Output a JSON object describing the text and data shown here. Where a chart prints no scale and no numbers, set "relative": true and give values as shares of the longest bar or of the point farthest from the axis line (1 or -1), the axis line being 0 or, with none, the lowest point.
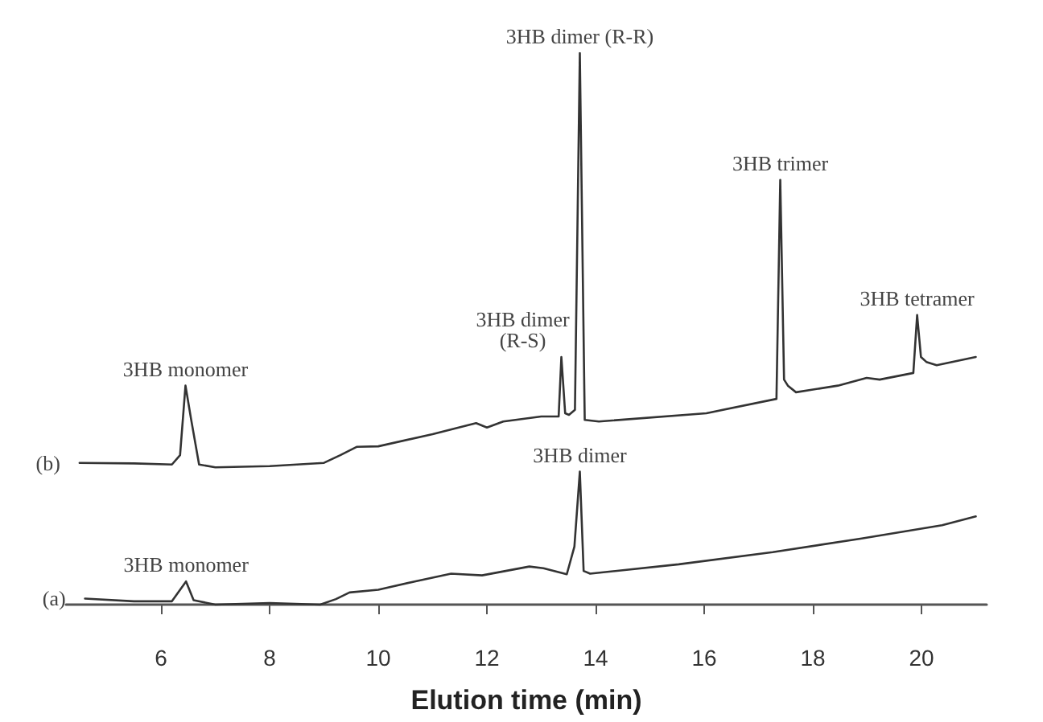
{
  "chart_data": {
    "type": "line",
    "relative": true,
    "xlabel": "Elution time (min)",
    "xlim": [
      4.25,
      21.2
    ],
    "xticks": [
      6,
      8,
      10,
      12,
      14,
      16,
      18,
      20
    ],
    "grid": false,
    "legend": false,
    "marker": "none",
    "line_style": "solid",
    "series": [
      {
        "name": "(b)",
        "color": "#333333",
        "x": [
          4.5,
          5.5,
          6.2,
          6.35,
          6.45,
          6.55,
          6.7,
          7,
          8,
          9,
          9.3,
          9.6,
          10,
          11,
          11.8,
          12,
          12.3,
          13.0,
          13.32,
          13.37,
          13.44,
          13.51,
          13.62,
          13.71,
          13.8,
          14.06,
          16.04,
          17.33,
          17.4,
          17.47,
          17.54,
          17.69,
          18.46,
          18.99,
          19.23,
          19.85,
          19.92,
          19.99,
          20.09,
          20.28,
          21.0
        ],
        "values": [
          0.257,
          0.256,
          0.254,
          0.271,
          0.397,
          0.338,
          0.254,
          0.249,
          0.251,
          0.257,
          0.271,
          0.286,
          0.287,
          0.309,
          0.329,
          0.321,
          0.332,
          0.341,
          0.341,
          0.449,
          0.347,
          0.344,
          0.353,
          1,
          0.335,
          0.332,
          0.347,
          0.373,
          0.77,
          0.408,
          0.397,
          0.385,
          0.397,
          0.411,
          0.408,
          0.42,
          0.525,
          0.449,
          0.44,
          0.434,
          0.449
        ]
      },
      {
        "name": "(a)",
        "color": "#333333",
        "x": [
          4.6,
          5.5,
          6.2,
          6.46,
          6.6,
          7,
          8,
          8.93,
          9.22,
          9.47,
          10.0,
          10.67,
          11.34,
          11.91,
          12.78,
          13.04,
          13.47,
          13.61,
          13.71,
          13.78,
          13.9,
          15.53,
          17.26,
          18.9,
          20.38,
          21.0
        ],
        "values": [
          0.011,
          0.006,
          0.006,
          0.042,
          0.008,
          0,
          0.003,
          0,
          0.01,
          0.022,
          0.027,
          0.042,
          0.056,
          0.053,
          0.069,
          0.066,
          0.055,
          0.105,
          0.241,
          0.061,
          0.056,
          0.073,
          0.095,
          0.12,
          0.144,
          0.16
        ]
      }
    ],
    "annotations": [
      {
        "text": "3HB monomer",
        "x": 6.45,
        "y": 0.397
      },
      {
        "text": "3HB dimer\n(R-S)",
        "x": 13.37,
        "y": 0.449
      },
      {
        "text": "3HB dimer (R-R)",
        "x": 13.71,
        "y": 1
      },
      {
        "text": "3HB trimer",
        "x": 17.4,
        "y": 0.77
      },
      {
        "text": "3HB tetramer",
        "x": 19.92,
        "y": 0.525
      },
      {
        "text": "3HB monomer",
        "x": 6.46,
        "y": 0.042
      },
      {
        "text": "3HB dimer",
        "x": 13.71,
        "y": 0.241
      }
    ]
  }
}
